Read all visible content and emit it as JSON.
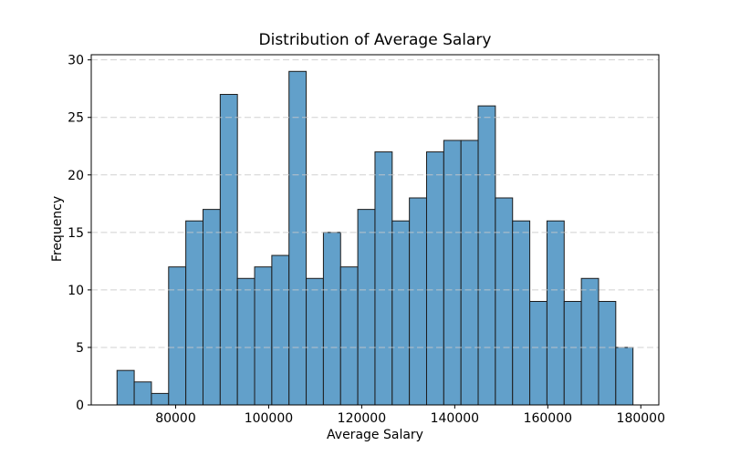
{
  "chart_data": {
    "type": "bar",
    "subtype": "histogram",
    "title": "Distribution of Average Salary",
    "xlabel": "Average Salary",
    "ylabel": "Frequency",
    "bin_start": 67400,
    "bin_width": 3697,
    "bin_count": 30,
    "values": [
      3,
      2,
      1,
      12,
      16,
      17,
      27,
      11,
      12,
      13,
      29,
      11,
      15,
      12,
      17,
      22,
      16,
      18,
      22,
      23,
      23,
      26,
      18,
      16,
      9,
      16,
      9,
      11,
      9,
      5
    ],
    "xlim": [
      61860,
      183870
    ],
    "ylim": [
      0,
      30.45
    ],
    "x_ticks": [
      80000,
      100000,
      120000,
      140000,
      160000,
      180000
    ],
    "y_ticks": [
      0,
      5,
      10,
      15,
      20,
      25,
      30
    ],
    "grid": "horizontal-dashed",
    "legend": "none",
    "colors": {
      "bar_fill": "#62A0CA",
      "bar_edge": "#1c1c1c",
      "grid": "#c9c9c9",
      "axis": "#000000",
      "text": "#000000",
      "background": "#ffffff"
    }
  }
}
